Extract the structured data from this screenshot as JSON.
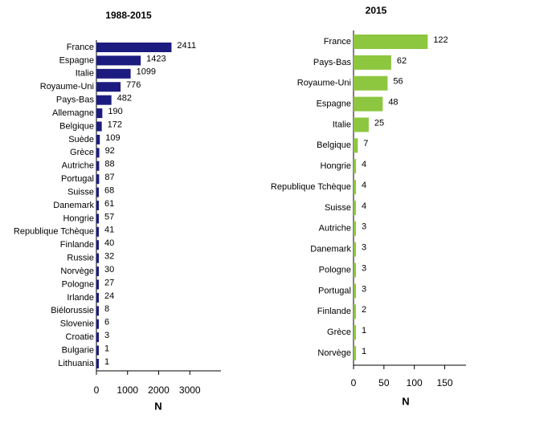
{
  "chart_data": [
    {
      "type": "bar",
      "orientation": "horizontal",
      "title": "1988-2015",
      "x_label": "N",
      "categories": [
        "France",
        "Espagne",
        "Italie",
        "Royaume-Uni",
        "Pays-Bas",
        "Allemagne",
        "Belgique",
        "Suède",
        "Grèce",
        "Autriche",
        "Portugal",
        "Suisse",
        "Danemark",
        "Hongrie",
        "Republique Tchèque",
        "Finlande",
        "Russie",
        "Norvège",
        "Pologne",
        "Irlande",
        "Biélorussie",
        "Slovenie",
        "Croatie",
        "Bulgarie",
        "Lithuania"
      ],
      "values": [
        2411,
        1423,
        1099,
        776,
        482,
        190,
        172,
        109,
        92,
        88,
        87,
        68,
        61,
        57,
        41,
        40,
        32,
        30,
        27,
        24,
        8,
        6,
        3,
        1,
        1
      ],
      "color": "#1c1c80",
      "xlim": [
        0,
        4000
      ],
      "xticks": [
        0,
        1000,
        2000,
        3000
      ]
    },
    {
      "type": "bar",
      "orientation": "horizontal",
      "title": "2015",
      "x_label": "N",
      "categories": [
        "France",
        "Pays-Bas",
        "Royaume-Uni",
        "Espagne",
        "Italie",
        "Belgique",
        "Hongrie",
        "Republique Tchèque",
        "Suisse",
        "Autriche",
        "Danemark",
        "Pologne",
        "Portugal",
        "Finlande",
        "Grèce",
        "Norvège"
      ],
      "values": [
        122,
        62,
        56,
        48,
        25,
        7,
        4,
        4,
        4,
        3,
        3,
        3,
        3,
        2,
        1,
        1
      ],
      "color": "#8dc63f",
      "xlim": [
        0,
        185
      ],
      "xticks": [
        0,
        50,
        100,
        150
      ]
    }
  ]
}
